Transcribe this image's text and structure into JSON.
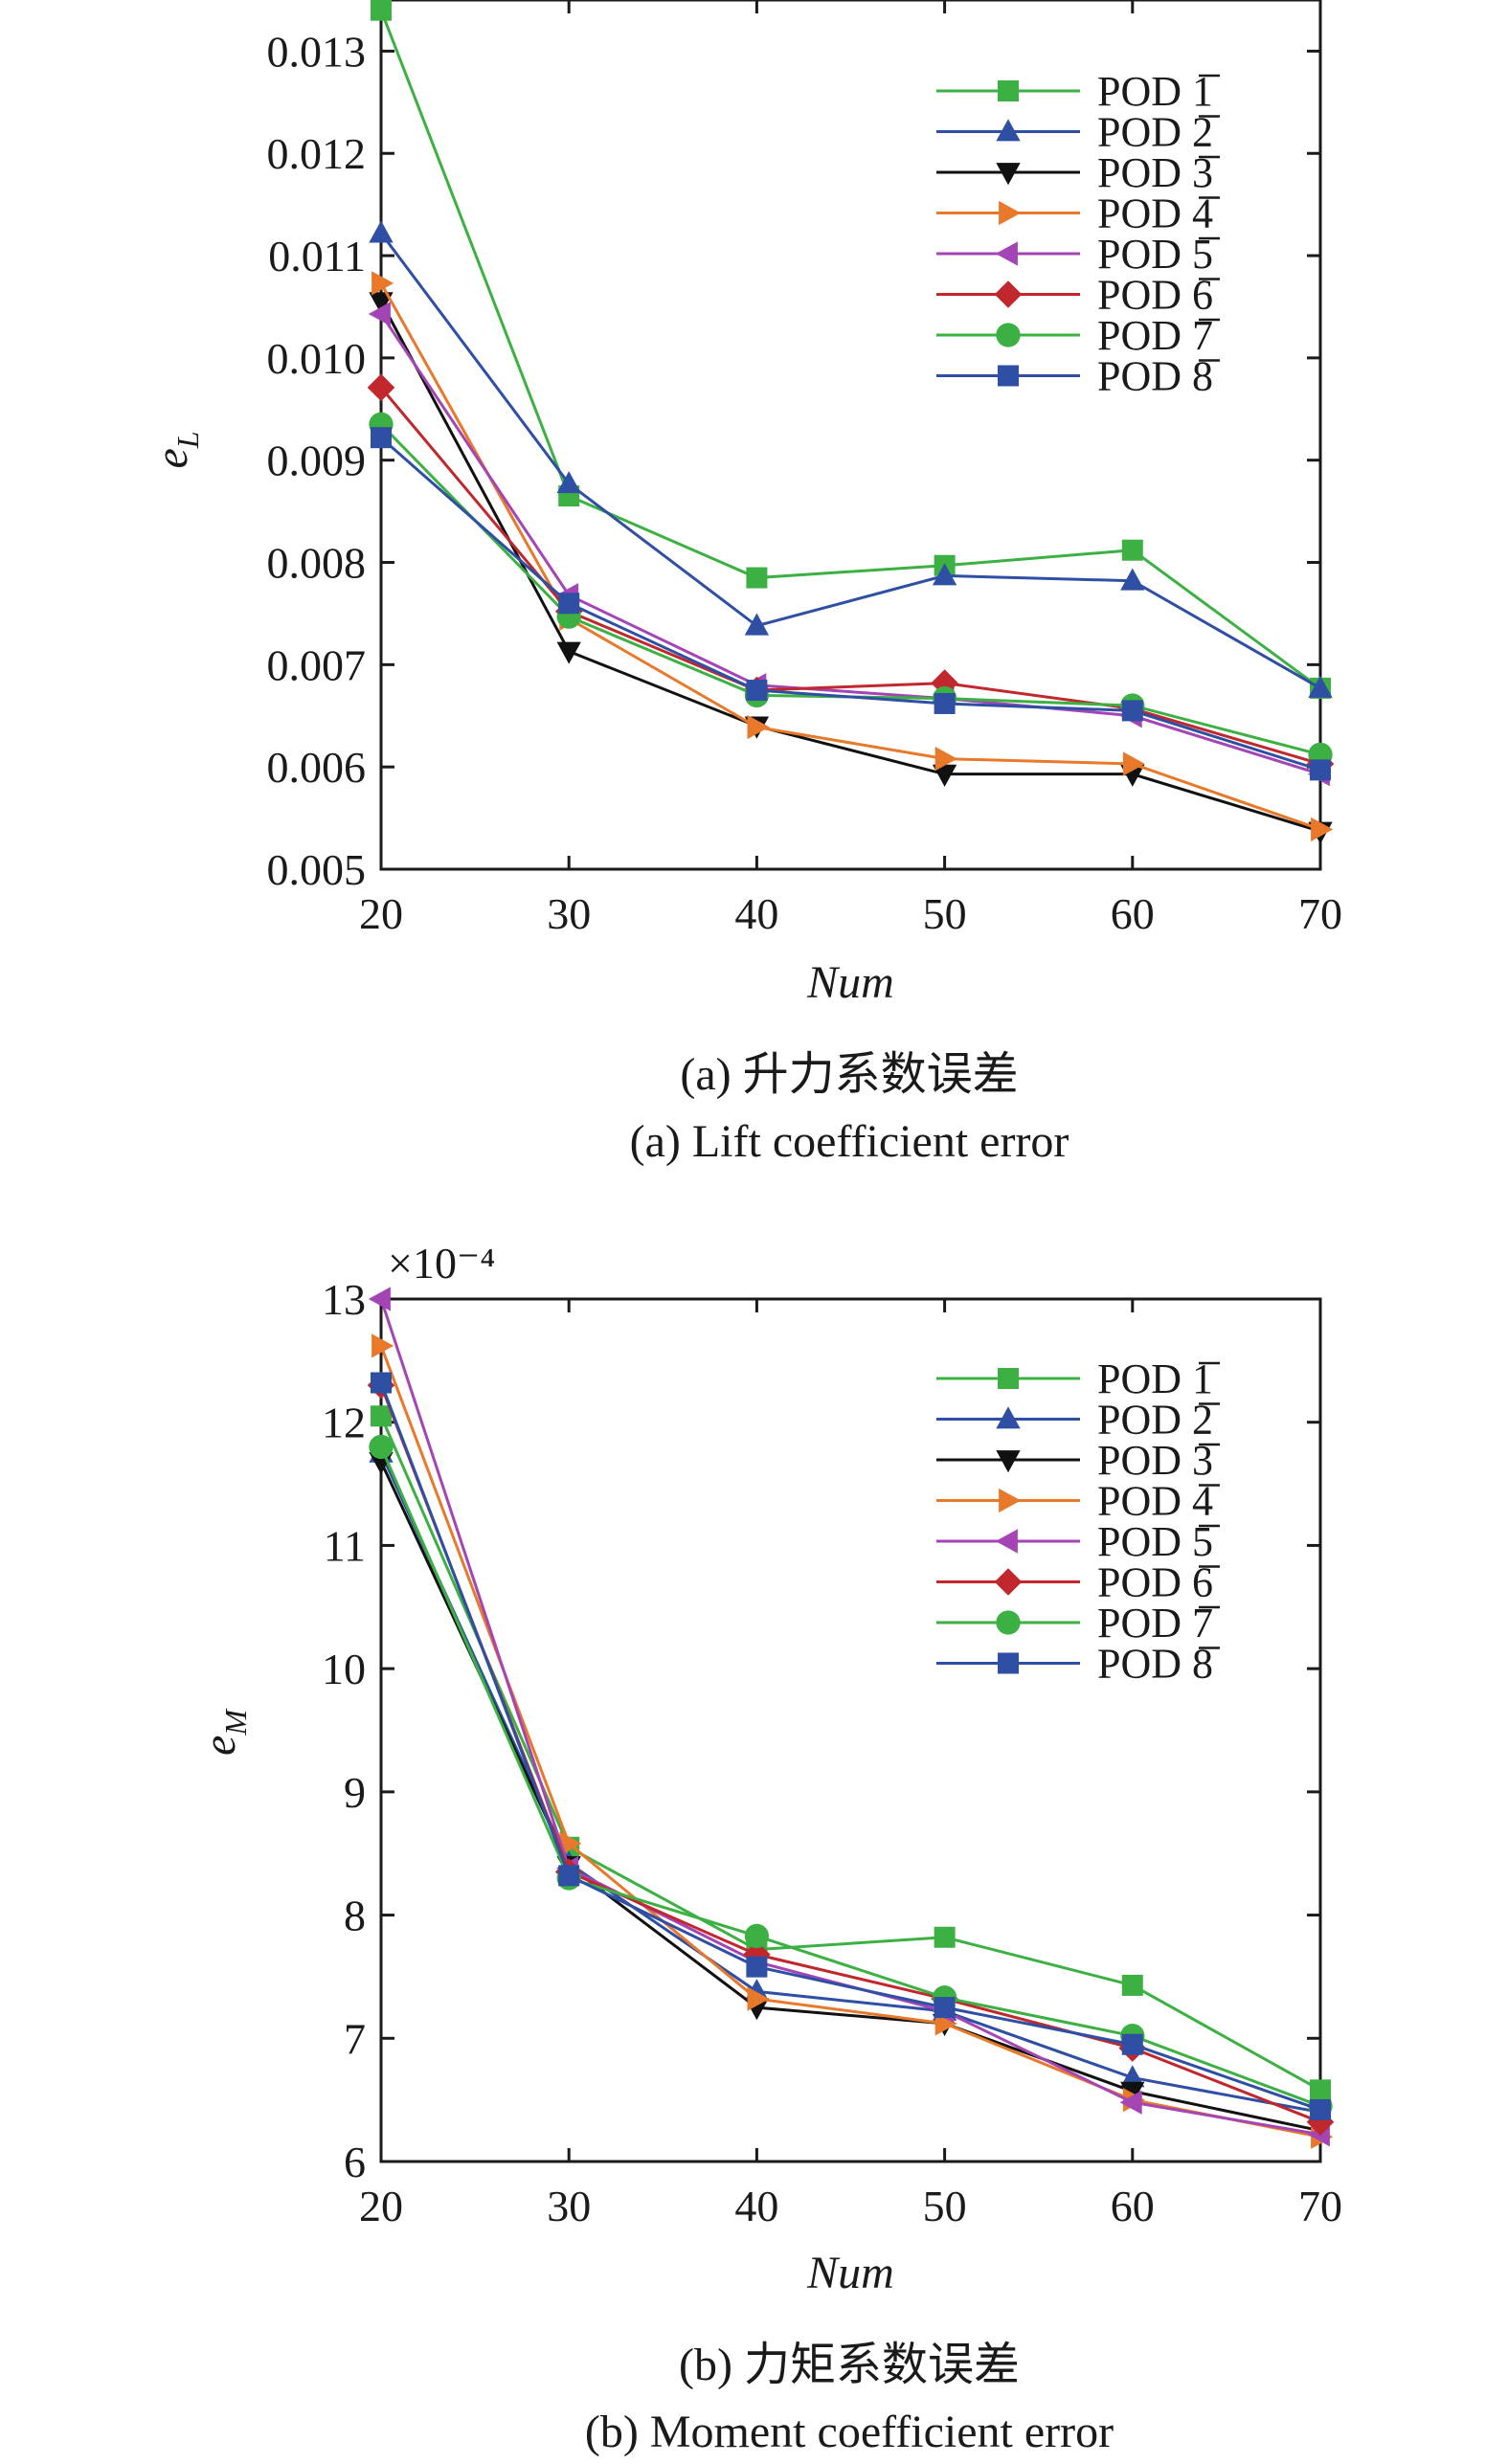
{
  "figure": {
    "panels": [
      {
        "caption_cn": "(a) 升力系数误差",
        "caption_en": "(a) Lift coefficient error",
        "xlabel": "Num",
        "ylabel_base": "e",
        "ylabel_sub": "L",
        "exponent_label": ""
      },
      {
        "caption_cn": "(b) 力矩系数误差",
        "caption_en": "(b) Moment coefficient error",
        "xlabel": "Num",
        "ylabel_base": "e",
        "ylabel_sub": "M",
        "exponent_label": "×10⁻⁴"
      }
    ]
  },
  "chart_data": [
    {
      "type": "line",
      "title": "(a) Lift coefficient error",
      "xlabel": "Num",
      "ylabel": "e_L",
      "x": [
        20,
        30,
        40,
        50,
        60,
        70
      ],
      "xlim": [
        20,
        70
      ],
      "ylim": [
        0.005,
        0.0135
      ],
      "xticks": [
        "20",
        "30",
        "40",
        "50",
        "60",
        "70"
      ],
      "yticks": [
        {
          "value": 0.005,
          "label": "0.005"
        },
        {
          "value": 0.006,
          "label": "0.006"
        },
        {
          "value": 0.007,
          "label": "0.007"
        },
        {
          "value": 0.008,
          "label": "0.008"
        },
        {
          "value": 0.009,
          "label": "0.009"
        },
        {
          "value": 0.01,
          "label": "0.010"
        },
        {
          "value": 0.011,
          "label": "0.011"
        },
        {
          "value": 0.012,
          "label": "0.012"
        },
        {
          "value": 0.013,
          "label": "0.013"
        }
      ],
      "legend_position": "top-right",
      "series": [
        {
          "name": "POD_1",
          "color": "#3cb043",
          "marker": "square",
          "values": [
            0.0134,
            0.00865,
            0.00785,
            0.00797,
            0.00812,
            0.00677
          ]
        },
        {
          "name": "POD_2",
          "color": "#2e4fa3",
          "marker": "triangle-up",
          "values": [
            0.01122,
            0.00877,
            0.00738,
            0.00787,
            0.00782,
            0.00677
          ]
        },
        {
          "name": "POD_3",
          "color": "#111111",
          "marker": "triangle-down",
          "values": [
            0.01055,
            0.00713,
            0.0064,
            0.00593,
            0.00593,
            0.00537
          ]
        },
        {
          "name": "POD_4",
          "color": "#e8782a",
          "marker": "triangle-right",
          "values": [
            0.01073,
            0.00745,
            0.00639,
            0.00608,
            0.00603,
            0.00539
          ]
        },
        {
          "name": "POD_5",
          "color": "#a444b5",
          "marker": "triangle-left",
          "values": [
            0.01043,
            0.00768,
            0.0068,
            0.00667,
            0.0065,
            0.00593
          ]
        },
        {
          "name": "POD_6",
          "color": "#c0282d",
          "marker": "diamond",
          "values": [
            0.00971,
            0.00752,
            0.00675,
            0.00682,
            0.00657,
            0.00603
          ]
        },
        {
          "name": "POD_7",
          "color": "#3cb043",
          "marker": "circle",
          "values": [
            0.00935,
            0.00747,
            0.0067,
            0.00667,
            0.0066,
            0.00612
          ]
        },
        {
          "name": "POD_8",
          "color": "#2e4fa3",
          "marker": "square",
          "values": [
            0.00922,
            0.0076,
            0.00675,
            0.00662,
            0.00655,
            0.00597
          ]
        }
      ]
    },
    {
      "type": "line",
      "title": "(b) Moment coefficient error",
      "xlabel": "Num",
      "ylabel": "e_M",
      "y_multiplier": "×10^-4",
      "x": [
        20,
        30,
        40,
        50,
        60,
        70
      ],
      "xlim": [
        20,
        70
      ],
      "ylim": [
        6,
        13
      ],
      "xticks": [
        "20",
        "30",
        "40",
        "50",
        "60",
        "70"
      ],
      "yticks": [
        {
          "value": 6,
          "label": "6"
        },
        {
          "value": 7,
          "label": "7"
        },
        {
          "value": 8,
          "label": "8"
        },
        {
          "value": 9,
          "label": "9"
        },
        {
          "value": 10,
          "label": "10"
        },
        {
          "value": 11,
          "label": "11"
        },
        {
          "value": 12,
          "label": "12"
        },
        {
          "value": 13,
          "label": "13"
        }
      ],
      "legend_position": "top-right",
      "series": [
        {
          "name": "POD_1",
          "color": "#3cb043",
          "marker": "square",
          "values": [
            12.05,
            8.55,
            7.72,
            7.82,
            7.43,
            6.58
          ]
        },
        {
          "name": "POD_2",
          "color": "#2e4fa3",
          "marker": "triangle-up",
          "values": [
            11.75,
            8.42,
            7.38,
            7.22,
            6.68,
            6.4
          ]
        },
        {
          "name": "POD_3",
          "color": "#111111",
          "marker": "triangle-down",
          "values": [
            11.68,
            8.4,
            7.25,
            7.12,
            6.57,
            6.25
          ]
        },
        {
          "name": "POD_4",
          "color": "#e8782a",
          "marker": "triangle-right",
          "values": [
            12.62,
            8.58,
            7.32,
            7.12,
            6.5,
            6.2
          ]
        },
        {
          "name": "POD_5",
          "color": "#a444b5",
          "marker": "triangle-left",
          "values": [
            13.0,
            8.38,
            7.62,
            7.22,
            6.48,
            6.22
          ]
        },
        {
          "name": "POD_6",
          "color": "#c0282d",
          "marker": "diamond",
          "values": [
            12.3,
            8.35,
            7.68,
            7.32,
            6.92,
            6.32
          ]
        },
        {
          "name": "POD_7",
          "color": "#3cb043",
          "marker": "circle",
          "values": [
            11.8,
            8.3,
            7.83,
            7.33,
            7.02,
            6.45
          ]
        },
        {
          "name": "POD_8",
          "color": "#2e4fa3",
          "marker": "square",
          "values": [
            12.32,
            8.32,
            7.58,
            7.25,
            6.95,
            6.42
          ]
        }
      ]
    }
  ]
}
